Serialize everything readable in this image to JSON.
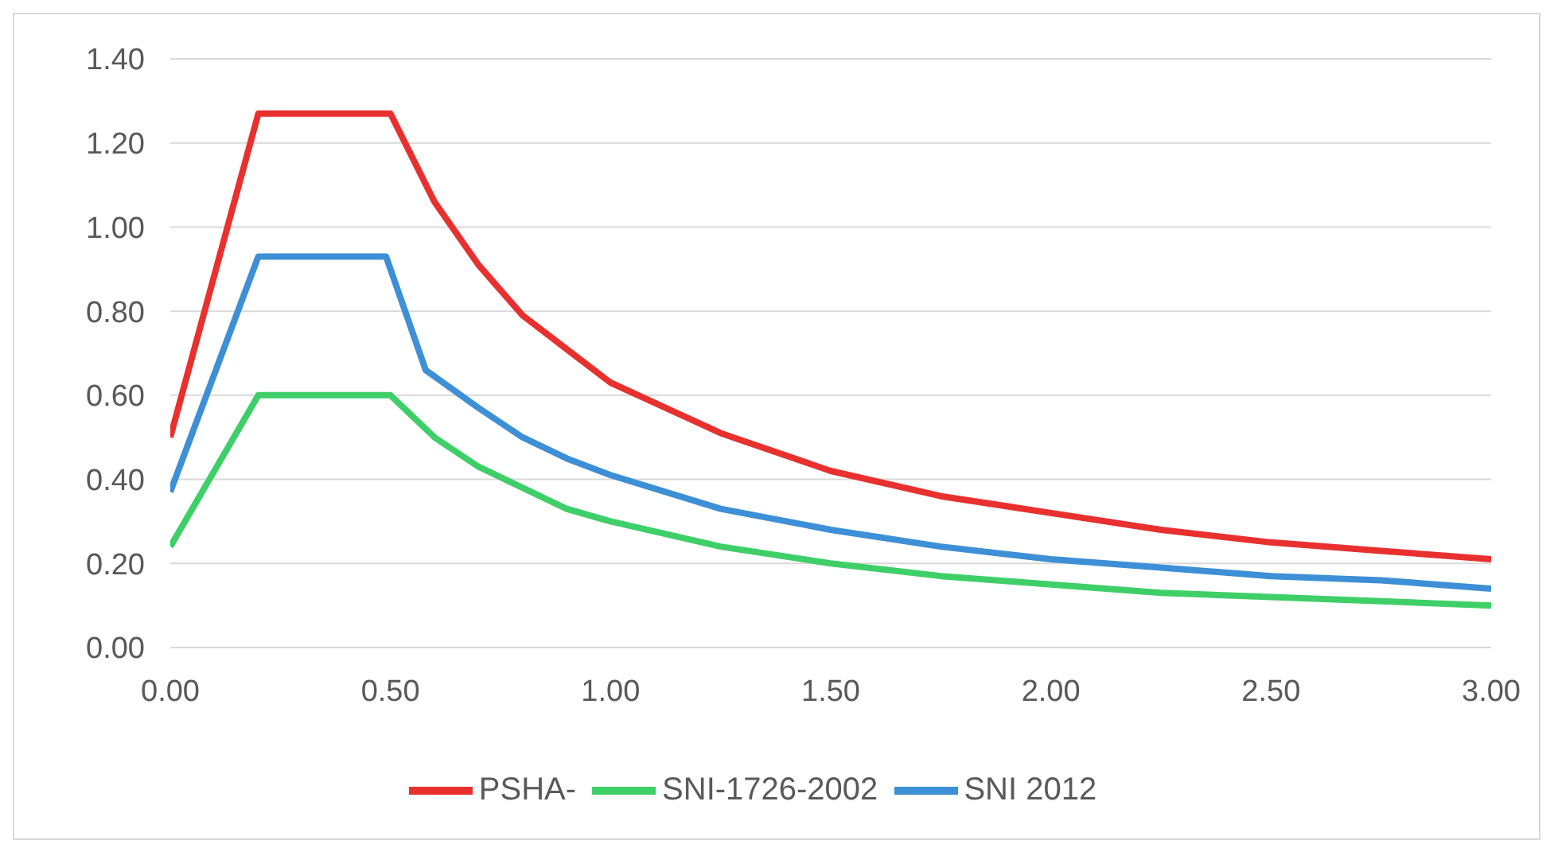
{
  "chart_data": {
    "type": "line",
    "xlim": [
      0,
      3
    ],
    "ylim": [
      0,
      1.4
    ],
    "xticks": [
      {
        "value": 0,
        "label": "0.00"
      },
      {
        "value": 0.5,
        "label": "0.50"
      },
      {
        "value": 1,
        "label": "1.00"
      },
      {
        "value": 1.5,
        "label": "1.50"
      },
      {
        "value": 2,
        "label": "2.00"
      },
      {
        "value": 2.5,
        "label": "2.50"
      },
      {
        "value": 3,
        "label": "3.00"
      }
    ],
    "yticks": [
      {
        "value": 0,
        "label": "0.00"
      },
      {
        "value": 0.2,
        "label": "0.20"
      },
      {
        "value": 0.4,
        "label": "0.40"
      },
      {
        "value": 0.6,
        "label": "0.60"
      },
      {
        "value": 0.8,
        "label": "0.80"
      },
      {
        "value": 1,
        "label": "1.00"
      },
      {
        "value": 1.2,
        "label": "1.20"
      },
      {
        "value": 1.4,
        "label": "1.40"
      }
    ],
    "grid": "y",
    "legend": "bottom",
    "marker": "none",
    "line_style": "solid",
    "series": [
      {
        "name": "PSHA-",
        "color": "#e8312f",
        "x": [
          0,
          0.2,
          0.5,
          0.6,
          0.7,
          0.8,
          0.9,
          1,
          1.25,
          1.5,
          1.75,
          2,
          2.25,
          2.5,
          2.75,
          3
        ],
        "values": [
          0.5,
          1.27,
          1.27,
          1.06,
          0.91,
          0.79,
          0.71,
          0.63,
          0.51,
          0.42,
          0.36,
          0.32,
          0.28,
          0.25,
          0.23,
          0.21
        ]
      },
      {
        "name": "SNI-1726-2002",
        "color": "#3fcf68",
        "x": [
          0,
          0.2,
          0.5,
          0.6,
          0.7,
          0.8,
          0.9,
          1,
          1.25,
          1.5,
          1.75,
          2,
          2.25,
          2.5,
          2.75,
          3
        ],
        "values": [
          0.24,
          0.6,
          0.6,
          0.5,
          0.43,
          0.38,
          0.33,
          0.3,
          0.24,
          0.2,
          0.17,
          0.15,
          0.13,
          0.12,
          0.11,
          0.1
        ]
      },
      {
        "name": "SNI 2012",
        "color": "#3d8fd6",
        "x": [
          0,
          0.2,
          0.49,
          0.58,
          0.7,
          0.8,
          0.9,
          1,
          1.25,
          1.5,
          1.75,
          2,
          2.25,
          2.5,
          2.75,
          3
        ],
        "values": [
          0.37,
          0.93,
          0.93,
          0.66,
          0.57,
          0.5,
          0.45,
          0.41,
          0.33,
          0.28,
          0.24,
          0.21,
          0.19,
          0.17,
          0.16,
          0.14
        ]
      }
    ]
  }
}
